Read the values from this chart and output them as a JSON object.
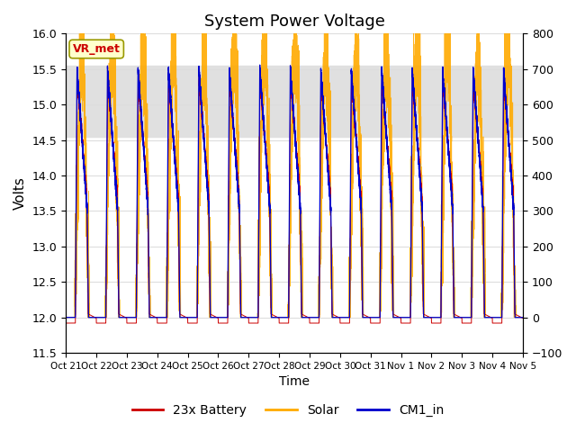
{
  "title": "System Power Voltage",
  "xlabel": "Time",
  "ylabel": "Volts",
  "ylim_left": [
    11.5,
    16.0
  ],
  "ylim_right": [
    -100,
    800
  ],
  "yticks_left": [
    11.5,
    12.0,
    12.5,
    13.0,
    13.5,
    14.0,
    14.5,
    15.0,
    15.5,
    16.0
  ],
  "yticks_right": [
    -100,
    0,
    100,
    200,
    300,
    400,
    500,
    600,
    700,
    800
  ],
  "xtick_labels": [
    "Oct 21",
    "Oct 22",
    "Oct 23",
    "Oct 24",
    "Oct 25",
    "Oct 26",
    "Oct 27",
    "Oct 28",
    "Oct 29",
    "Oct 30",
    "Oct 31",
    "Nov 1",
    "Nov 2",
    "Nov 3",
    "Nov 4",
    "Nov 5"
  ],
  "color_battery": "#cc0000",
  "color_solar": "#ffaa00",
  "color_cm1": "#0000cc",
  "legend_labels": [
    "23x Battery",
    "Solar",
    "CM1_in"
  ],
  "vr_met_label": "VR_met",
  "vr_met_color": "#cc0000",
  "vr_met_bg": "#ffffcc",
  "background_color": "#ffffff",
  "grid_color": "#dddddd",
  "shading_color": "#e0e0e0",
  "num_days": 15,
  "seed": 42
}
